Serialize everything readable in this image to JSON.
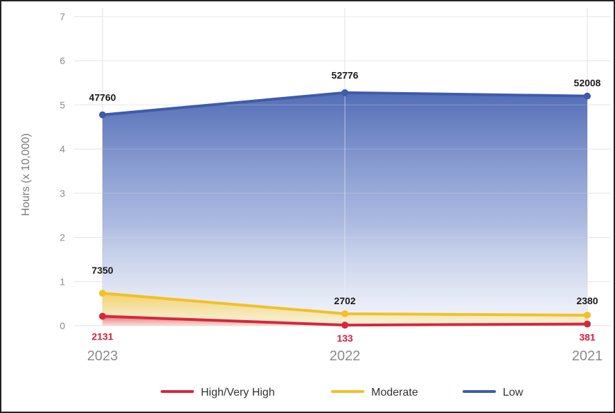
{
  "chart_data": {
    "type": "area",
    "categories": [
      "2023",
      "2022",
      "2021"
    ],
    "ylabel": "Hours (x 10,000)",
    "ylim": [
      0,
      7
    ],
    "yticks": [
      "0",
      "1",
      "2",
      "3",
      "4",
      "5",
      "6",
      "7"
    ],
    "grid": true,
    "legend_position": "bottom",
    "series": [
      {
        "name": "High/Very High",
        "values": [
          2131,
          133,
          381
        ],
        "labels": [
          "2131",
          "133",
          "381"
        ],
        "color": "#d7263d"
      },
      {
        "name": "Moderate",
        "values": [
          7350,
          2702,
          2380
        ],
        "labels": [
          "7350",
          "2702",
          "2380"
        ],
        "color": "#f2c027"
      },
      {
        "name": "Low",
        "values": [
          47760,
          52776,
          52008
        ],
        "labels": [
          "47760",
          "52776",
          "52008"
        ],
        "color": "#3f5ba9"
      }
    ]
  }
}
